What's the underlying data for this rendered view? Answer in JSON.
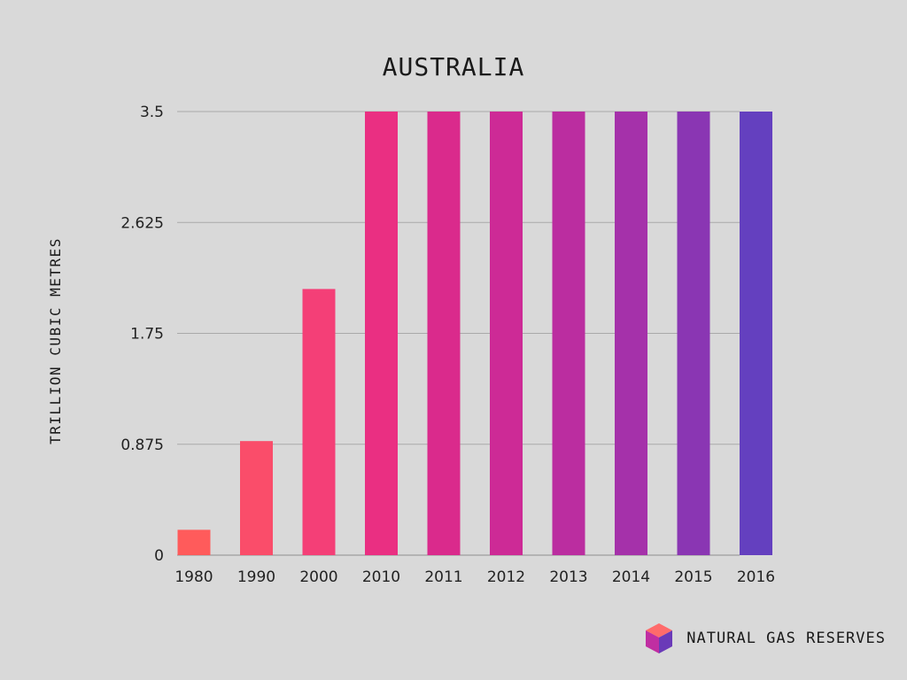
{
  "chart_data": {
    "type": "bar",
    "title": "AUSTRALIA",
    "xlabel": "",
    "ylabel": "TRILLION CUBIC METRES",
    "categories": [
      "1980",
      "1990",
      "2000",
      "2010",
      "2011",
      "2012",
      "2013",
      "2014",
      "2015",
      "2016"
    ],
    "values": [
      0.2,
      0.9,
      2.1,
      3.5,
      3.5,
      3.5,
      3.5,
      3.5,
      3.5,
      3.5
    ],
    "bar_colors": [
      "#ff5b5b",
      "#fa4d6a",
      "#f43f77",
      "#ea2f82",
      "#da2a8c",
      "#cd2a96",
      "#bb2da0",
      "#a531aa",
      "#8a36b3",
      "#6440bf"
    ],
    "ylim": [
      0,
      3.5
    ],
    "yticks": [
      0,
      0.875,
      1.75,
      2.625,
      3.5
    ],
    "ytick_labels": [
      "0",
      "0.875",
      "1.75",
      "2.625",
      "3.5"
    ],
    "grid": true,
    "legend": false
  },
  "brand": {
    "label": "NATURAL GAS RESERVES",
    "logo_icon": "cube-icon",
    "logo_colors": [
      "#ff6b6b",
      "#c02ea2",
      "#6a3ab8"
    ]
  }
}
